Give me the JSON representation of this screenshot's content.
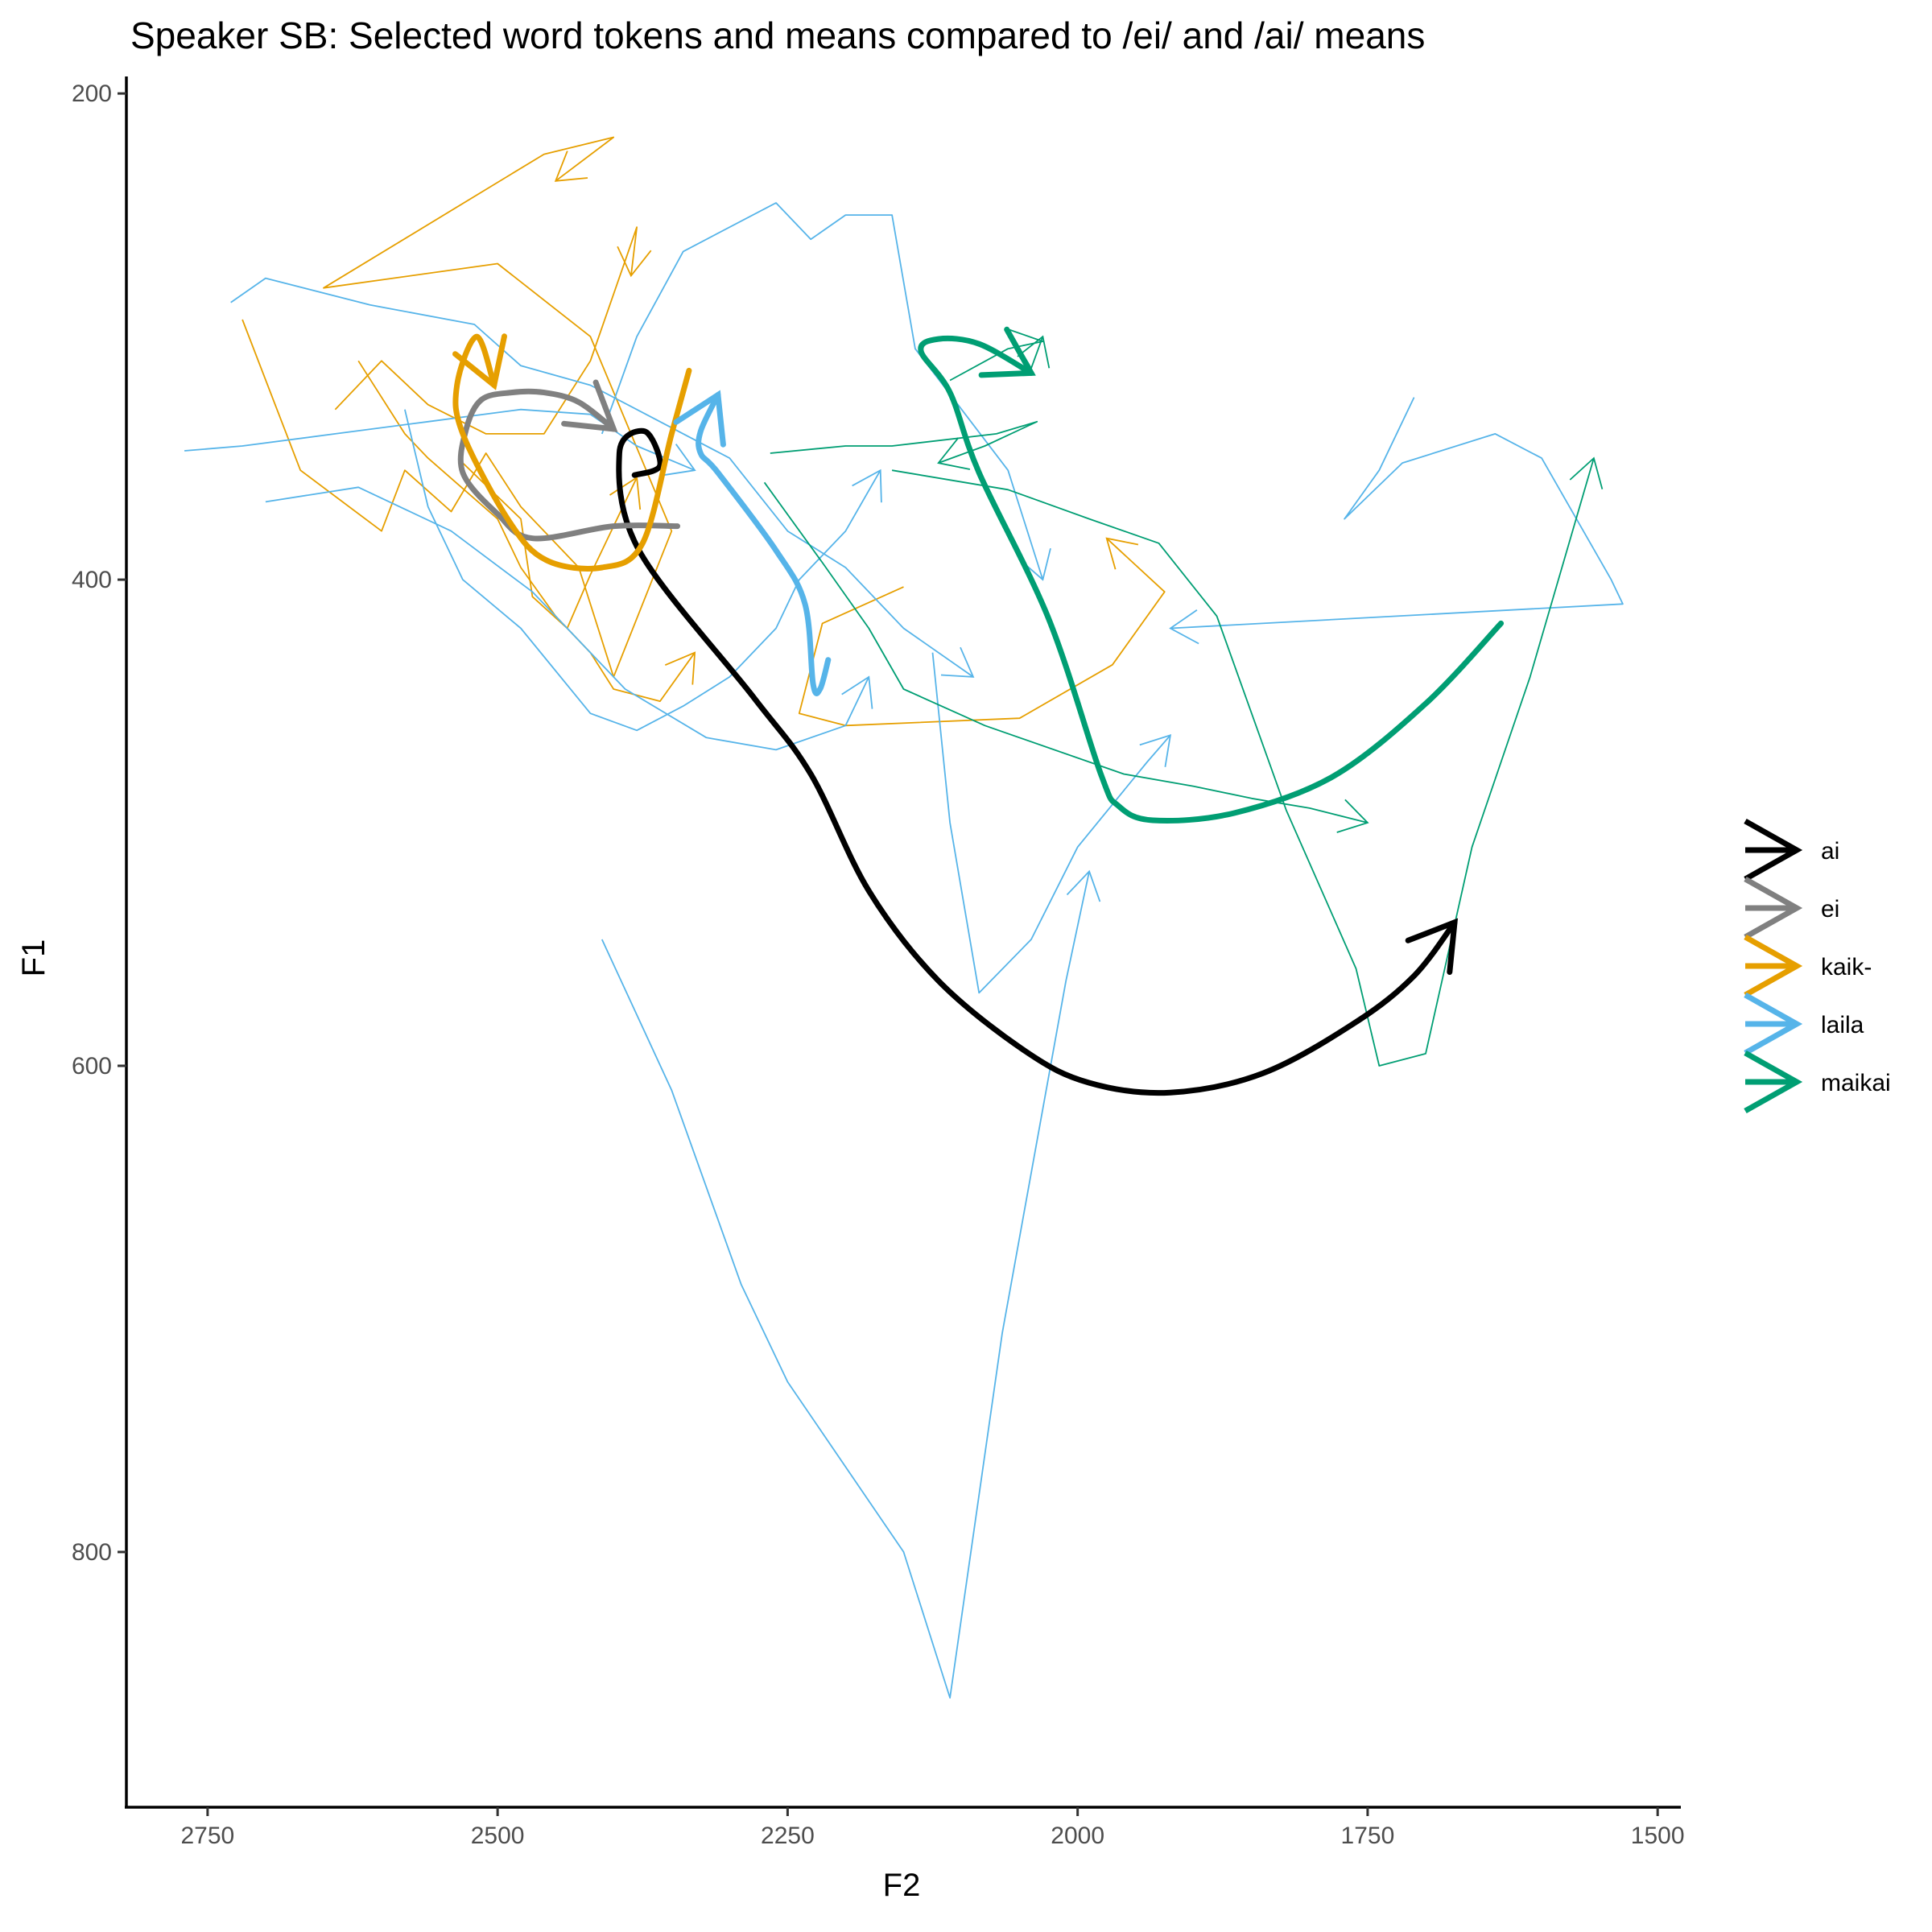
{
  "chart_data": {
    "type": "line",
    "title": "Speaker SB: Selected word tokens and means compared to /ei/ and /ai/ means",
    "xlabel": "F2",
    "ylabel": "F1",
    "x_reversed": true,
    "y_reversed": true,
    "xlim": [
      2820,
      1480
    ],
    "ylim": [
      193,
      905
    ],
    "x_ticks": [
      2750,
      2500,
      2250,
      2000,
      1750,
      1500
    ],
    "x_tick_labels": [
      "2750",
      "2500",
      "2250",
      "2000",
      "1750",
      "1500"
    ],
    "y_ticks": [
      200,
      400,
      600,
      800
    ],
    "y_tick_labels": [
      "200",
      "400",
      "600",
      "800"
    ],
    "grid": false,
    "legend_position": "right",
    "colors": {
      "ai": "#000000",
      "ei": "#808080",
      "kaik-": "#E69F00",
      "laila": "#56B4E9",
      "maikai": "#009E73"
    },
    "means": [
      {
        "name": "ai",
        "color": "#000000",
        "points": [
          [
            2382,
            357
          ],
          [
            2360,
            353
          ],
          [
            2373,
            339
          ],
          [
            2395,
            348
          ],
          [
            2378,
            388
          ],
          [
            2280,
            448
          ],
          [
            2230,
            480
          ],
          [
            2180,
            528
          ],
          [
            2120,
            565
          ],
          [
            2045,
            594
          ],
          [
            1990,
            607
          ],
          [
            1920,
            611
          ],
          [
            1840,
            603
          ],
          [
            1760,
            582
          ],
          [
            1710,
            563
          ],
          [
            1675,
            541
          ]
        ]
      },
      {
        "name": "ei",
        "color": "#808080",
        "points": [
          [
            2345,
            378
          ],
          [
            2400,
            378
          ],
          [
            2470,
            383
          ],
          [
            2500,
            373
          ],
          [
            2530,
            356
          ],
          [
            2527,
            338
          ],
          [
            2514,
            326
          ],
          [
            2488,
            323
          ],
          [
            2460,
            323
          ],
          [
            2430,
            327
          ],
          [
            2400,
            338
          ]
        ]
      },
      {
        "name": "kaik-",
        "color": "#E69F00",
        "points": [
          [
            2335,
            314
          ],
          [
            2350,
            340
          ],
          [
            2375,
            385
          ],
          [
            2410,
            395
          ],
          [
            2458,
            392
          ],
          [
            2490,
            376
          ],
          [
            2530,
            340
          ],
          [
            2535,
            320
          ],
          [
            2518,
            300
          ],
          [
            2503,
            320
          ]
        ]
      },
      {
        "name": "laila",
        "color": "#56B4E9",
        "points": [
          [
            2215,
            433
          ],
          [
            2222,
            445
          ],
          [
            2228,
            443
          ],
          [
            2235,
            410
          ],
          [
            2260,
            388
          ],
          [
            2310,
            356
          ],
          [
            2325,
            348
          ],
          [
            2325,
            339
          ],
          [
            2310,
            324
          ]
        ]
      },
      {
        "name": "maikai",
        "color": "#009E73",
        "points": [
          [
            1635,
            418
          ],
          [
            1700,
            451
          ],
          [
            1780,
            481
          ],
          [
            1865,
            496
          ],
          [
            1935,
            499
          ],
          [
            1965,
            493
          ],
          [
            1980,
            480
          ],
          [
            2025,
            416
          ],
          [
            2085,
            356
          ],
          [
            2110,
            323
          ],
          [
            2135,
            306
          ],
          [
            2120,
            301
          ],
          [
            2085,
            303
          ],
          [
            2040,
            315
          ]
        ]
      }
    ],
    "tokens": [
      {
        "series": "kaik-",
        "color": "#E69F00",
        "points": [
          [
            2720,
            293
          ],
          [
            2670,
            355
          ],
          [
            2600,
            380
          ],
          [
            2580,
            355
          ],
          [
            2540,
            372
          ],
          [
            2510,
            348
          ],
          [
            2480,
            370
          ],
          [
            2430,
            395
          ],
          [
            2400,
            440
          ],
          [
            2350,
            380
          ],
          [
            2420,
            300
          ],
          [
            2500,
            270
          ],
          [
            2650,
            280
          ],
          [
            2460,
            225
          ],
          [
            2400,
            218
          ],
          [
            2450,
            236
          ]
        ]
      },
      {
        "series": "kaik-",
        "color": "#E69F00",
        "points": [
          [
            2640,
            330
          ],
          [
            2600,
            310
          ],
          [
            2560,
            328
          ],
          [
            2510,
            340
          ],
          [
            2460,
            340
          ],
          [
            2420,
            310
          ],
          [
            2380,
            255
          ],
          [
            2385,
            275
          ]
        ]
      },
      {
        "series": "kaik-",
        "color": "#E69F00",
        "points": [
          [
            2530,
            352
          ],
          [
            2480,
            375
          ],
          [
            2470,
            407
          ],
          [
            2440,
            420
          ],
          [
            2420,
            398
          ],
          [
            2380,
            358
          ]
        ]
      },
      {
        "series": "kaik-",
        "color": "#E69F00",
        "points": [
          [
            2150,
            403
          ],
          [
            2220,
            418
          ],
          [
            2240,
            455
          ],
          [
            2200,
            460
          ],
          [
            2050,
            457
          ],
          [
            1970,
            435
          ],
          [
            1925,
            405
          ],
          [
            1975,
            383
          ]
        ]
      },
      {
        "series": "kaik-",
        "color": "#E69F00",
        "points": [
          [
            2620,
            310
          ],
          [
            2580,
            340
          ],
          [
            2560,
            350
          ],
          [
            2500,
            375
          ],
          [
            2480,
            395
          ],
          [
            2450,
            415
          ],
          [
            2420,
            430
          ],
          [
            2400,
            445
          ],
          [
            2360,
            450
          ],
          [
            2330,
            430
          ]
        ]
      },
      {
        "series": "laila",
        "color": "#56B4E9",
        "points": [
          [
            2770,
            347
          ],
          [
            2720,
            345
          ],
          [
            2640,
            340
          ],
          [
            2560,
            335
          ],
          [
            2480,
            330
          ],
          [
            2420,
            332
          ],
          [
            2380,
            345
          ],
          [
            2330,
            355
          ]
        ]
      },
      {
        "series": "laila",
        "color": "#56B4E9",
        "points": [
          [
            2730,
            286
          ],
          [
            2700,
            276
          ],
          [
            2610,
            287
          ],
          [
            2520,
            295
          ],
          [
            2480,
            312
          ],
          [
            2420,
            320
          ],
          [
            2360,
            335
          ],
          [
            2300,
            350
          ],
          [
            2250,
            380
          ],
          [
            2200,
            395
          ],
          [
            2150,
            420
          ],
          [
            2090,
            440
          ]
        ]
      },
      {
        "series": "laila",
        "color": "#56B4E9",
        "points": [
          [
            2700,
            368
          ],
          [
            2620,
            362
          ],
          [
            2540,
            380
          ],
          [
            2470,
            405
          ],
          [
            2390,
            445
          ],
          [
            2320,
            465
          ],
          [
            2260,
            470
          ],
          [
            2200,
            460
          ],
          [
            2180,
            440
          ]
        ]
      },
      {
        "series": "laila",
        "color": "#56B4E9",
        "points": [
          [
            2410,
            548
          ],
          [
            2350,
            610
          ],
          [
            2290,
            690
          ],
          [
            2250,
            730
          ],
          [
            2150,
            800
          ],
          [
            2110,
            860
          ],
          [
            2065,
            710
          ],
          [
            2010,
            565
          ],
          [
            1990,
            520
          ]
        ]
      },
      {
        "series": "laila",
        "color": "#56B4E9",
        "points": [
          [
            2125,
            430
          ],
          [
            2110,
            500
          ],
          [
            2085,
            570
          ],
          [
            2040,
            548
          ],
          [
            2000,
            510
          ],
          [
            1940,
            475
          ],
          [
            1920,
            464
          ]
        ]
      },
      {
        "series": "laila",
        "color": "#56B4E9",
        "points": [
          [
            2580,
            330
          ],
          [
            2560,
            370
          ],
          [
            2530,
            400
          ],
          [
            2480,
            420
          ],
          [
            2420,
            455
          ],
          [
            2380,
            462
          ],
          [
            2340,
            452
          ],
          [
            2300,
            440
          ],
          [
            2260,
            420
          ],
          [
            2240,
            400
          ],
          [
            2200,
            380
          ],
          [
            2170,
            355
          ]
        ]
      },
      {
        "series": "laila",
        "color": "#56B4E9",
        "points": [
          [
            2410,
            340
          ],
          [
            2380,
            300
          ],
          [
            2340,
            265
          ],
          [
            2260,
            245
          ],
          [
            2230,
            260
          ],
          [
            2200,
            250
          ],
          [
            2160,
            250
          ],
          [
            2140,
            305
          ],
          [
            2100,
            330
          ],
          [
            2060,
            355
          ],
          [
            2030,
            400
          ]
        ]
      },
      {
        "series": "laila",
        "color": "#56B4E9",
        "points": [
          [
            1710,
            325
          ],
          [
            1740,
            355
          ],
          [
            1770,
            375
          ],
          [
            1720,
            352
          ],
          [
            1640,
            340
          ],
          [
            1600,
            350
          ],
          [
            1570,
            375
          ],
          [
            1540,
            400
          ],
          [
            1530,
            410
          ],
          [
            1920,
            420
          ]
        ]
      },
      {
        "series": "maikai",
        "color": "#009E73",
        "points": [
          [
            2110,
            318
          ],
          [
            2060,
            305
          ],
          [
            2030,
            302
          ],
          [
            2060,
            297
          ],
          [
            2040,
            313
          ],
          [
            2030,
            300
          ]
        ]
      },
      {
        "series": "maikai",
        "color": "#009E73",
        "points": [
          [
            2265,
            348
          ],
          [
            2200,
            345
          ],
          [
            2160,
            345
          ],
          [
            2070,
            340
          ],
          [
            2035,
            335
          ],
          [
            2080,
            345
          ],
          [
            2120,
            352
          ]
        ]
      },
      {
        "series": "maikai",
        "color": "#009E73",
        "points": [
          [
            2270,
            360
          ],
          [
            2220,
            393
          ],
          [
            2180,
            420
          ],
          [
            2150,
            445
          ],
          [
            2080,
            460
          ],
          [
            1960,
            480
          ],
          [
            1900,
            485
          ],
          [
            1850,
            490
          ],
          [
            1800,
            494
          ],
          [
            1750,
            500
          ]
        ]
      },
      {
        "series": "maikai",
        "color": "#009E73",
        "points": [
          [
            2160,
            355
          ],
          [
            2060,
            363
          ],
          [
            1990,
            375
          ],
          [
            1930,
            385
          ],
          [
            1880,
            415
          ],
          [
            1820,
            495
          ],
          [
            1760,
            560
          ],
          [
            1740,
            600
          ],
          [
            1700,
            595
          ],
          [
            1660,
            510
          ],
          [
            1610,
            440
          ],
          [
            1555,
            350
          ]
        ]
      }
    ]
  }
}
